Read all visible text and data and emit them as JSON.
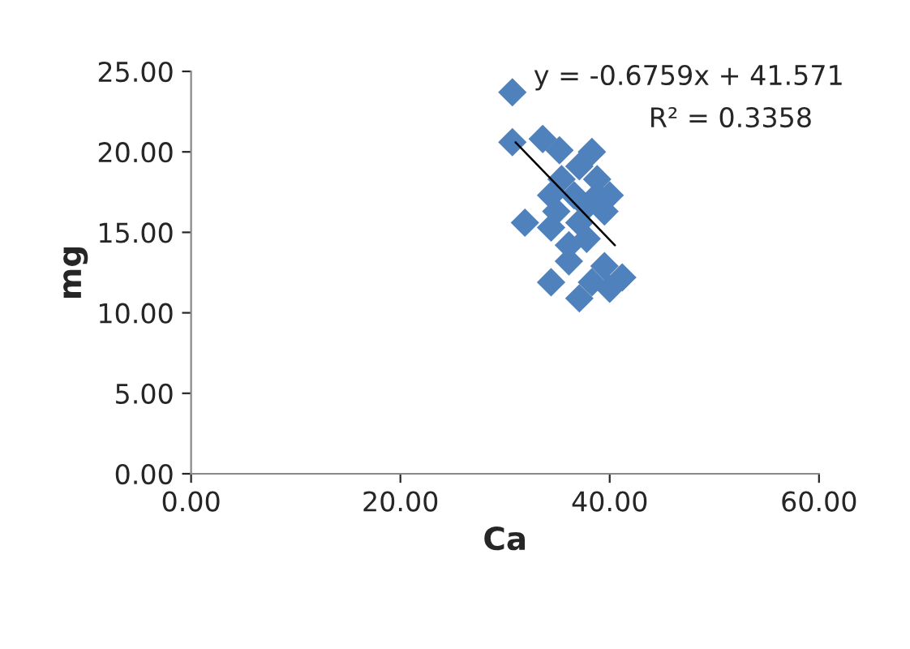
{
  "chart_data": {
    "type": "scatter",
    "xlabel": "Ca",
    "ylabel": "mg",
    "xlim": [
      0,
      60
    ],
    "ylim": [
      0,
      25
    ],
    "xticks": [
      {
        "value": 0,
        "label": "0.00"
      },
      {
        "value": 20,
        "label": "20.00"
      },
      {
        "value": 40,
        "label": "40.00"
      },
      {
        "value": 60,
        "label": "60.00"
      }
    ],
    "yticks": [
      {
        "value": 0,
        "label": "0.00"
      },
      {
        "value": 5,
        "label": "5.00"
      },
      {
        "value": 10,
        "label": "10.00"
      },
      {
        "value": 15,
        "label": "15.00"
      },
      {
        "value": 20,
        "label": "20.00"
      },
      {
        "value": 25,
        "label": "25.00"
      }
    ],
    "grid": false,
    "legend": false,
    "series": [
      {
        "marker": "diamond",
        "color": "#4f81bd",
        "x": [
          30.7,
          30.7,
          33.6,
          35.2,
          38.3,
          37.1,
          38.8,
          40.0,
          35.4,
          34.4,
          36.6,
          39.5,
          34.9,
          31.9,
          34.4,
          37.1,
          36.1,
          37.8,
          36.1,
          39.5,
          41.2,
          38.3,
          34.4,
          37.1,
          40.0,
          38.8,
          37.8
        ],
        "values": [
          23.7,
          20.6,
          20.8,
          20.1,
          20.0,
          19.1,
          18.3,
          17.3,
          18.3,
          17.3,
          17.3,
          16.3,
          16.3,
          15.6,
          15.3,
          15.6,
          14.2,
          14.6,
          13.2,
          12.9,
          12.2,
          11.9,
          11.9,
          10.9,
          11.5,
          17.3,
          16.6
        ]
      },
      {
        "type": "line",
        "color": "#000000",
        "x": [
          31.0,
          40.5
        ],
        "values": [
          20.6,
          14.2
        ]
      }
    ],
    "annotations": [
      "y = -0.6759x + 41.571",
      "R² = 0.3358"
    ]
  }
}
